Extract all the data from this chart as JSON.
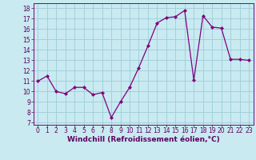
{
  "x": [
    0,
    1,
    2,
    3,
    4,
    5,
    6,
    7,
    8,
    9,
    10,
    11,
    12,
    13,
    14,
    15,
    16,
    17,
    18,
    19,
    20,
    21,
    22,
    23
  ],
  "y": [
    11.0,
    11.5,
    10.0,
    9.8,
    10.4,
    10.4,
    9.7,
    9.9,
    7.5,
    9.0,
    10.4,
    12.3,
    14.4,
    16.6,
    17.1,
    17.2,
    17.8,
    11.1,
    17.3,
    16.2,
    16.1,
    13.1,
    13.1,
    13.0
  ],
  "line_color": "#800080",
  "marker": "D",
  "marker_size": 2.0,
  "linewidth": 0.9,
  "bg_color": "#c8eaf0",
  "grid_color": "#b0d8e0",
  "xlabel": "Windchill (Refroidissement éolien,°C)",
  "tick_fontsize": 5.5,
  "xlabel_fontsize": 6.5,
  "ylim": [
    6.8,
    18.5
  ],
  "xlim": [
    -0.5,
    23.5
  ],
  "yticks": [
    7,
    8,
    9,
    10,
    11,
    12,
    13,
    14,
    15,
    16,
    17,
    18
  ],
  "xticks": [
    0,
    1,
    2,
    3,
    4,
    5,
    6,
    7,
    8,
    9,
    10,
    11,
    12,
    13,
    14,
    15,
    16,
    17,
    18,
    19,
    20,
    21,
    22,
    23
  ]
}
